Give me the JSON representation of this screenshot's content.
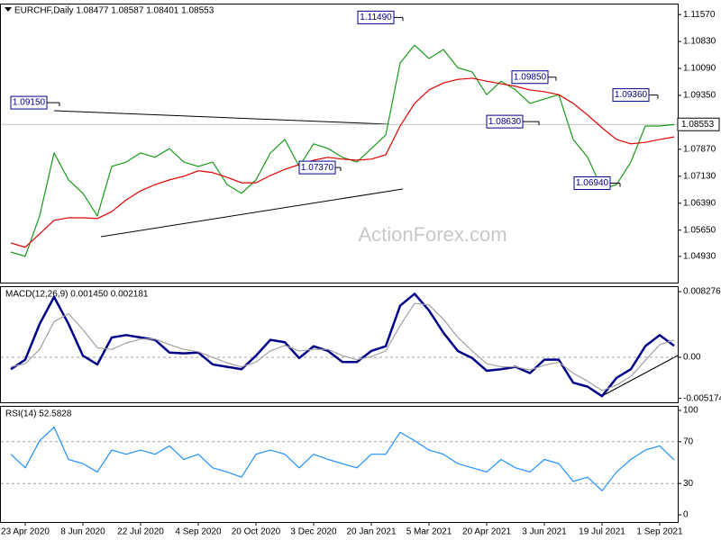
{
  "chart_data": [
    {
      "type": "line",
      "title": "EURCHF,Daily  1.08477 1.08587 1.08401 1.08553",
      "watermark": "ActionForex.com",
      "ylim": [
        1.0421,
        1.1187
      ],
      "yticks": [
        {
          "value": 1.1157,
          "label": "1.11570"
        },
        {
          "value": 1.1083,
          "label": "1.10830"
        },
        {
          "value": 1.1009,
          "label": "1.10090"
        },
        {
          "value": 1.0935,
          "label": "1.09350"
        },
        {
          "value": 1.0861,
          "label": "1.08610"
        },
        {
          "value": 1.0787,
          "label": "1.07870"
        },
        {
          "value": 1.0713,
          "label": "1.07130"
        },
        {
          "value": 1.0639,
          "label": "1.06390"
        },
        {
          "value": 1.0565,
          "label": "1.05650"
        },
        {
          "value": 1.0493,
          "label": "1.04930"
        }
      ],
      "series": [
        {
          "color": "#1a9a1a",
          "values": [
            1.0505,
            1.0493,
            1.0604,
            1.0777,
            1.0703,
            1.0666,
            1.0604,
            1.074,
            1.0752,
            1.0777,
            1.0765,
            1.0789,
            1.0752,
            1.074,
            1.0752,
            1.069,
            1.0666,
            1.0703,
            1.0777,
            1.0814,
            1.074,
            1.0802,
            1.0789,
            1.0765,
            1.0752,
            1.0789,
            1.0826,
            1.1024,
            1.1073,
            1.1036,
            1.1061,
            1.1011,
            1.0999,
            1.0937,
            1.0974,
            1.095,
            1.0913,
            1.0925,
            1.0937,
            1.0814,
            1.0765,
            1.0678,
            1.069,
            1.0752,
            1.0851,
            1.0851,
            1.0855
          ]
        },
        {
          "color": "#e00000",
          "values": [
            1.053,
            1.0518,
            1.0555,
            1.0592,
            1.0599,
            1.0599,
            1.0597,
            1.0616,
            1.0648,
            1.0673,
            1.069,
            1.0703,
            1.0713,
            1.0728,
            1.0723,
            1.071,
            1.0695,
            1.0695,
            1.0715,
            1.0732,
            1.0745,
            1.0757,
            1.0765,
            1.076,
            1.0757,
            1.076,
            1.0772,
            1.0851,
            1.0913,
            1.095,
            1.0969,
            1.0979,
            1.0982,
            1.0974,
            1.0967,
            1.096,
            1.095,
            1.0945,
            1.0937,
            1.0913,
            1.0881,
            1.0846,
            1.0814,
            1.0802,
            1.0806,
            1.0814,
            1.0821
          ]
        }
      ],
      "annotations": [
        {
          "value": 1.1149,
          "label": "1.11490"
        },
        {
          "value": 1.0915,
          "label": "1.09150"
        },
        {
          "value": 1.0737,
          "label": "1.07370"
        },
        {
          "value": 1.0985,
          "label": "1.09850"
        },
        {
          "value": 1.0863,
          "label": "1.08630"
        },
        {
          "value": 1.0936,
          "label": "1.09360"
        },
        {
          "value": 1.0694,
          "label": "1.06940"
        }
      ],
      "last_price": {
        "value": 1.08553,
        "label": "1.08553"
      }
    },
    {
      "type": "line",
      "title": "MACD(12,26,9) 0.001450 0.002181",
      "ylim": [
        -0.00567,
        0.00896
      ],
      "yticks": [
        0.008276,
        {
          "value": 0,
          "label": "0.00"
        },
        -0.005174
      ],
      "levels": [
        0
      ],
      "series": [
        {
          "color": "#00008b",
          "values": [
            -0.0015,
            -0.0003,
            0.0042,
            0.0076,
            0.0042,
            0.0002,
            -0.0009,
            0.0025,
            0.0028,
            0.0025,
            0.0022,
            0.0006,
            0.0005,
            0.0006,
            -0.0009,
            -0.0012,
            -0.0015,
            0.0002,
            0.0022,
            0.0019,
            -0.0001,
            0.0014,
            0.0008,
            -0.0006,
            -0.0006,
            0.0008,
            0.0014,
            0.0065,
            0.008,
            0.0059,
            0.0031,
            0.0008,
            -0.0001,
            -0.0017,
            -0.0015,
            -0.0012,
            -0.002,
            -0.0003,
            -0.0003,
            -0.0032,
            -0.0037,
            -0.0049,
            -0.0026,
            -0.0015,
            0.0014,
            0.0028,
            0.00145
          ]
        },
        {
          "color": "#a0a0a0",
          "values": [
            -0.0012,
            -0.0008,
            0.001,
            0.0045,
            0.0055,
            0.0035,
            0.0012,
            0.001,
            0.0018,
            0.0023,
            0.0023,
            0.0016,
            0.001,
            0.0007,
            0.0,
            -0.0007,
            -0.0012,
            -0.0006,
            0.0008,
            0.0015,
            0.0008,
            0.001,
            0.001,
            0.0002,
            -0.0003,
            0.0001,
            0.0008,
            0.004,
            0.0068,
            0.0066,
            0.0048,
            0.0025,
            0.0008,
            -0.0008,
            -0.0012,
            -0.0012,
            -0.0016,
            -0.001,
            -0.0006,
            -0.002,
            -0.003,
            -0.0042,
            -0.0035,
            -0.0024,
            -0.0004,
            0.0016,
            0.00218
          ]
        }
      ]
    },
    {
      "type": "line",
      "title": "RSI(14) 52.5828",
      "ylim": [
        -6.9,
        104.3
      ],
      "yticks": [
        100,
        70,
        30,
        0
      ],
      "levels": [
        70,
        30
      ],
      "categories": [
        null,
        "23 Apr 2020",
        null,
        null,
        null,
        "8 Jun 2020",
        null,
        null,
        null,
        "22 Jul 2020",
        null,
        null,
        null,
        "4 Sep 2020",
        null,
        null,
        null,
        "20 Oct 2020",
        null,
        null,
        null,
        "3 Dec 2020",
        null,
        null,
        null,
        "20 Jan 2021",
        null,
        null,
        null,
        "5 Mar 2021",
        null,
        null,
        null,
        "20 Apr 2021",
        null,
        null,
        null,
        "3 Jun 2021",
        null,
        null,
        null,
        "19 Jul 2021",
        null,
        null,
        null,
        "1 Sep 2021",
        null
      ],
      "series": [
        {
          "color": "#1e90ff",
          "values": [
            58,
            45,
            71,
            84,
            53,
            49,
            41,
            62,
            58,
            62,
            58,
            66,
            53,
            58,
            45,
            41,
            36,
            58,
            62,
            58,
            45,
            58,
            53,
            49,
            45,
            58,
            58,
            79,
            71,
            62,
            58,
            49,
            45,
            41,
            53,
            45,
            41,
            53,
            49,
            32,
            36,
            23,
            41,
            53,
            62,
            66,
            52.58
          ]
        }
      ]
    }
  ]
}
